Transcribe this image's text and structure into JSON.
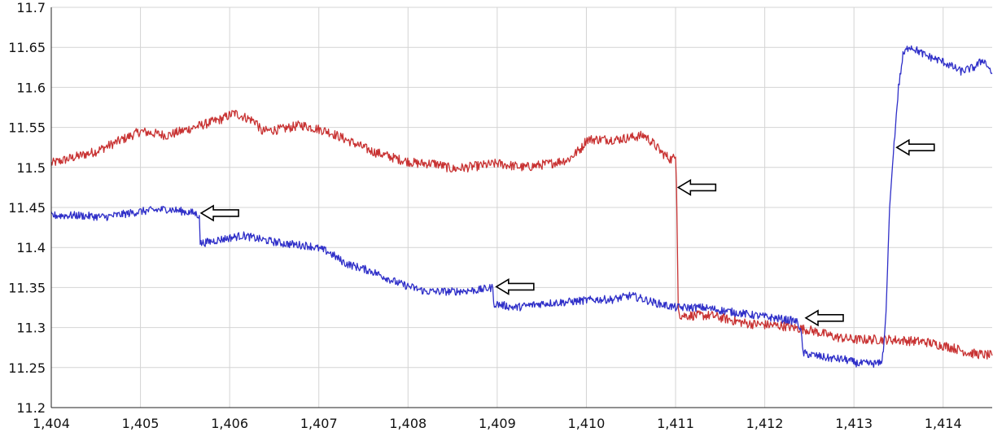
{
  "chart_data": {
    "type": "line",
    "title": "",
    "xlabel": "",
    "ylabel": "",
    "grid": true,
    "xlim": [
      1404,
      1414.55
    ],
    "ylim": [
      11.2,
      11.7
    ],
    "x_ticks": [
      1404,
      1405,
      1406,
      1407,
      1408,
      1409,
      1410,
      1411,
      1412,
      1413,
      1414
    ],
    "x_tick_labels": [
      "1,404",
      "1,405",
      "1,406",
      "1,407",
      "1,408",
      "1,409",
      "1,410",
      "1,411",
      "1,412",
      "1,413",
      "1,414"
    ],
    "y_ticks": [
      11.2,
      11.25,
      11.3,
      11.35,
      11.4,
      11.45,
      11.5,
      11.55,
      11.6,
      11.65,
      11.7
    ],
    "y_tick_labels": [
      "11.2",
      "11.25",
      "11.3",
      "11.35",
      "11.4",
      "11.45",
      "11.5",
      "11.55",
      "11.6",
      "11.65",
      "11.7"
    ],
    "colors": {
      "red_series": "#c83232",
      "blue_series": "#2f2fc8",
      "grid": "#d4d4d4",
      "axis": "#222222",
      "arrow_stroke": "#000000",
      "arrow_fill": "#ffffff"
    },
    "series": [
      {
        "name": "red",
        "color": "#c83232",
        "noise": 0.006,
        "points": [
          [
            1404.0,
            11.505
          ],
          [
            1404.5,
            11.52
          ],
          [
            1404.8,
            11.535
          ],
          [
            1405.0,
            11.545
          ],
          [
            1405.3,
            11.54
          ],
          [
            1405.6,
            11.55
          ],
          [
            1405.9,
            11.56
          ],
          [
            1406.05,
            11.568
          ],
          [
            1406.3,
            11.557
          ],
          [
            1406.35,
            11.545
          ],
          [
            1406.6,
            11.548
          ],
          [
            1406.8,
            11.553
          ],
          [
            1407.1,
            11.545
          ],
          [
            1407.3,
            11.535
          ],
          [
            1407.6,
            11.52
          ],
          [
            1407.9,
            11.51
          ],
          [
            1408.1,
            11.505
          ],
          [
            1408.3,
            11.505
          ],
          [
            1408.5,
            11.498
          ],
          [
            1408.8,
            11.502
          ],
          [
            1409.0,
            11.505
          ],
          [
            1409.3,
            11.5
          ],
          [
            1409.6,
            11.505
          ],
          [
            1409.8,
            11.51
          ],
          [
            1409.95,
            11.525
          ],
          [
            1410.0,
            11.535
          ],
          [
            1410.35,
            11.535
          ],
          [
            1410.65,
            11.54
          ],
          [
            1410.75,
            11.53
          ],
          [
            1410.85,
            11.518
          ],
          [
            1410.95,
            11.51
          ],
          [
            1411.0,
            11.513
          ],
          [
            1411.01,
            11.48
          ],
          [
            1411.03,
            11.33
          ],
          [
            1411.05,
            11.315
          ],
          [
            1411.4,
            11.315
          ],
          [
            1411.8,
            11.305
          ],
          [
            1412.2,
            11.302
          ],
          [
            1412.5,
            11.297
          ],
          [
            1412.8,
            11.288
          ],
          [
            1413.0,
            11.285
          ],
          [
            1413.4,
            11.285
          ],
          [
            1413.8,
            11.282
          ],
          [
            1414.1,
            11.275
          ],
          [
            1414.3,
            11.268
          ],
          [
            1414.55,
            11.265
          ]
        ]
      },
      {
        "name": "blue",
        "color": "#2f2fc8",
        "noise": 0.005,
        "points": [
          [
            1404.0,
            11.44
          ],
          [
            1404.3,
            11.44
          ],
          [
            1404.6,
            11.438
          ],
          [
            1405.0,
            11.445
          ],
          [
            1405.3,
            11.448
          ],
          [
            1405.6,
            11.443
          ],
          [
            1405.66,
            11.44
          ],
          [
            1405.67,
            11.405
          ],
          [
            1405.9,
            11.41
          ],
          [
            1406.15,
            11.415
          ],
          [
            1406.35,
            11.41
          ],
          [
            1406.6,
            11.405
          ],
          [
            1406.9,
            11.402
          ],
          [
            1407.1,
            11.395
          ],
          [
            1407.3,
            11.38
          ],
          [
            1407.6,
            11.37
          ],
          [
            1407.9,
            11.355
          ],
          [
            1408.2,
            11.345
          ],
          [
            1408.5,
            11.345
          ],
          [
            1408.8,
            11.347
          ],
          [
            1408.95,
            11.35
          ],
          [
            1408.96,
            11.33
          ],
          [
            1409.2,
            11.325
          ],
          [
            1409.5,
            11.33
          ],
          [
            1409.8,
            11.332
          ],
          [
            1410.1,
            11.335
          ],
          [
            1410.3,
            11.335
          ],
          [
            1410.5,
            11.34
          ],
          [
            1410.8,
            11.33
          ],
          [
            1411.0,
            11.325
          ],
          [
            1411.3,
            11.325
          ],
          [
            1411.6,
            11.32
          ],
          [
            1411.9,
            11.315
          ],
          [
            1412.1,
            11.312
          ],
          [
            1412.35,
            11.308
          ],
          [
            1412.4,
            11.3
          ],
          [
            1412.43,
            11.268
          ],
          [
            1412.7,
            11.262
          ],
          [
            1412.9,
            11.26
          ],
          [
            1413.05,
            11.255
          ],
          [
            1413.15,
            11.255
          ],
          [
            1413.3,
            11.255
          ],
          [
            1413.33,
            11.27
          ],
          [
            1413.36,
            11.32
          ],
          [
            1413.4,
            11.45
          ],
          [
            1413.45,
            11.53
          ],
          [
            1413.5,
            11.6
          ],
          [
            1413.55,
            11.64
          ],
          [
            1413.62,
            11.652
          ],
          [
            1413.8,
            11.64
          ],
          [
            1414.0,
            11.632
          ],
          [
            1414.2,
            11.62
          ],
          [
            1414.35,
            11.625
          ],
          [
            1414.45,
            11.635
          ],
          [
            1414.55,
            11.618
          ]
        ]
      }
    ],
    "annotations": [
      {
        "type": "arrow",
        "direction": "left",
        "x": 1405.68,
        "y": 11.443
      },
      {
        "type": "arrow",
        "direction": "left",
        "x": 1411.03,
        "y": 11.475
      },
      {
        "type": "arrow",
        "direction": "left",
        "x": 1408.99,
        "y": 11.351
      },
      {
        "type": "arrow",
        "direction": "left",
        "x": 1412.46,
        "y": 11.312
      },
      {
        "type": "arrow",
        "direction": "left",
        "x": 1413.48,
        "y": 11.525
      }
    ]
  }
}
